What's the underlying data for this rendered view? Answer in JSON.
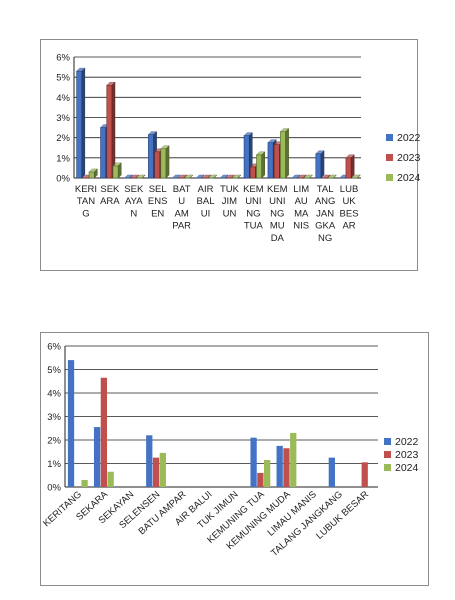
{
  "page": {
    "background": "#ffffff"
  },
  "chart_data": [
    {
      "type": "bar",
      "style": "3d-clustered-column",
      "categories": [
        "KERITANG",
        "SEKARA",
        "SEKAYAN",
        "SELENSEN",
        "BATU AMPAR",
        "AIR BALUI",
        "TUK JIMUN",
        "KEMUNING TUA",
        "KEMUNING MUDA",
        "LIMAU MANIS",
        "TALANG JANGKANG",
        "LUBUK BESAR"
      ],
      "category_tick_labels": [
        [
          "KERI",
          "TAN",
          "G"
        ],
        [
          "SEK",
          "ARA"
        ],
        [
          "SEK",
          "AYA",
          "N"
        ],
        [
          "SEL",
          "ENS",
          "EN"
        ],
        [
          "BAT",
          "U",
          "AM",
          "PAR"
        ],
        [
          "AIR",
          "BAL",
          "UI"
        ],
        [
          "TUK",
          "JIM",
          "UN"
        ],
        [
          "KEM",
          "UNI",
          "NG",
          "TUA"
        ],
        [
          "KEM",
          "UNI",
          "NG",
          "MU",
          "DA"
        ],
        [
          "LIM",
          "AU",
          "MA",
          "NIS"
        ],
        [
          "TAL",
          "ANG",
          "JAN",
          "GKA",
          "NG"
        ],
        [
          "LUB",
          "UK",
          "BES",
          "AR"
        ]
      ],
      "series": [
        {
          "name": "2022",
          "color": "#4472c4",
          "values": [
            5.3,
            2.5,
            0,
            2.15,
            0,
            0,
            0,
            2.1,
            1.75,
            0,
            1.2,
            0
          ]
        },
        {
          "name": "2023",
          "color": "#c0504d",
          "values": [
            0,
            4.6,
            0,
            1.3,
            0,
            0,
            0,
            0.55,
            1.65,
            0,
            0,
            1.0
          ]
        },
        {
          "name": "2024",
          "color": "#9bbb59",
          "values": [
            0.3,
            0.6,
            0,
            1.45,
            0,
            0,
            0,
            1.15,
            2.3,
            0,
            0,
            0
          ]
        }
      ],
      "yticks": [
        "0%",
        "1%",
        "2%",
        "3%",
        "4%",
        "5%",
        "6%"
      ],
      "ylim": [
        0,
        6
      ],
      "grid": true,
      "legend": "right",
      "title": "",
      "xlabel": "",
      "ylabel": ""
    },
    {
      "type": "bar",
      "style": "clustered-column",
      "categories": [
        "KERITANG",
        "SEKARA",
        "SEKAYAN",
        "SELENSEN",
        "BATU AMPAR",
        "AIR BALUI",
        "TUK JIMUN",
        "KEMUNING TUA",
        "KEMUNING MUDA",
        "LIMAU MANIS",
        "TALANG JANGKANG",
        "LUBUK BESAR"
      ],
      "series": [
        {
          "name": "2022",
          "color": "#4472c4",
          "values": [
            5.4,
            2.55,
            0,
            2.2,
            0,
            0,
            0,
            2.1,
            1.75,
            0,
            1.25,
            0
          ]
        },
        {
          "name": "2023",
          "color": "#c0504d",
          "values": [
            0,
            4.65,
            0,
            1.25,
            0,
            0,
            0,
            0.6,
            1.65,
            0,
            0,
            1.05
          ]
        },
        {
          "name": "2024",
          "color": "#9bbb59",
          "values": [
            0.3,
            0.65,
            0,
            1.45,
            0,
            0,
            0,
            1.15,
            2.3,
            0,
            0,
            0
          ]
        }
      ],
      "yticks": [
        "0%",
        "1%",
        "2%",
        "3%",
        "4%",
        "5%",
        "6%"
      ],
      "ylim": [
        0,
        6
      ],
      "grid": true,
      "legend": "right",
      "title": "",
      "xlabel": "",
      "ylabel": ""
    }
  ]
}
